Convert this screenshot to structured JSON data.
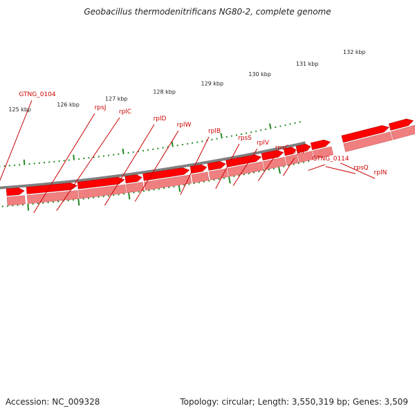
{
  "title": "Geobacillus thermodenitrificans NG80-2, complete genome",
  "accession": "Accession: NC_009328",
  "summary": "Topology: circular; Length: 3,550,319 bp; Genes: 3,509",
  "colors": {
    "gene_light": "#f08080",
    "gene_dark": "#ff0000",
    "tick": "#228822",
    "backbone": "#808080",
    "label": "#cc0000"
  },
  "kbp_labels": [
    "125 kbp",
    "126 kbp",
    "127 kbp",
    "128 kbp",
    "129 kbp",
    "130 kbp",
    "131 kbp",
    "132 kbp"
  ],
  "gene_labels": [
    "GTNG_0104",
    "rpsJ",
    "rplC",
    "rplD",
    "rplW",
    "rplB",
    "rpsS",
    "rplV",
    "rpsC",
    "rplP",
    "GTNG_0114",
    "rpsQ",
    "rplN"
  ]
}
